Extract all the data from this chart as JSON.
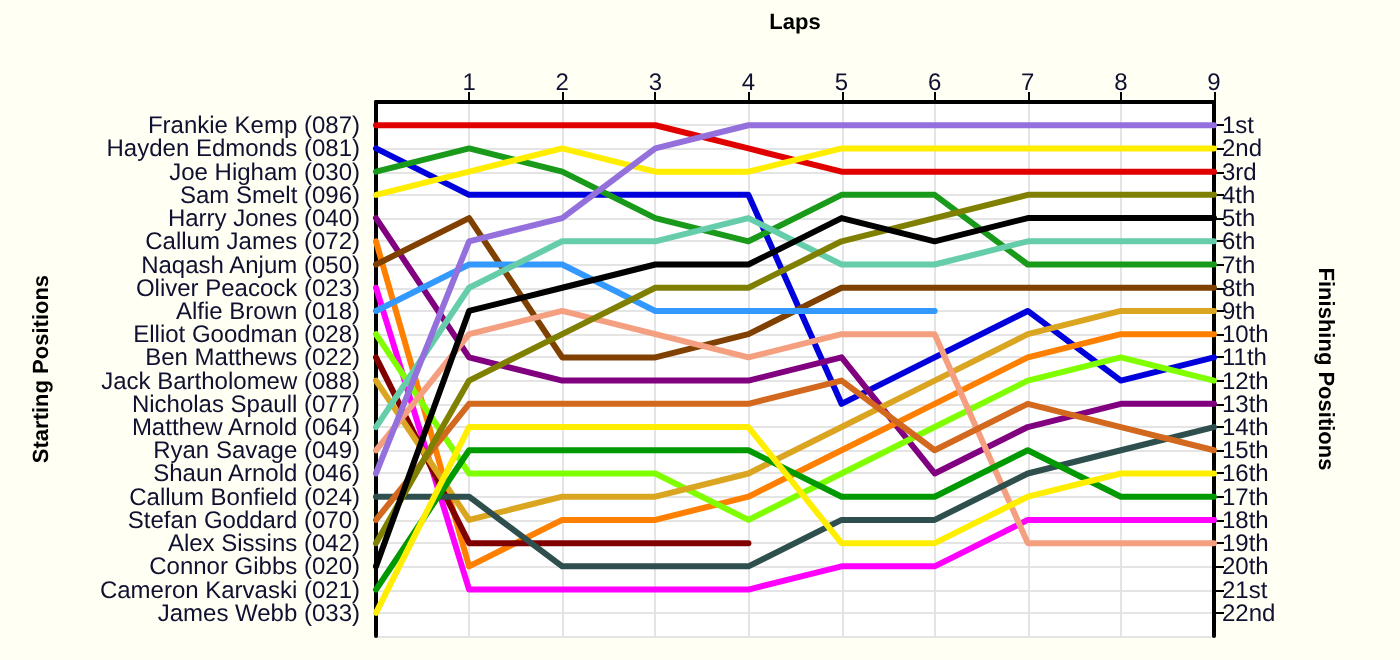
{
  "chart_data": {
    "type": "line",
    "xlabel": "Laps",
    "y2label": "Finishing Positions",
    "x": [
      0,
      1,
      2,
      3,
      4,
      5,
      6,
      7,
      8,
      9
    ],
    "xlim": [
      0,
      9
    ],
    "xticks": [
      1,
      2,
      3,
      4,
      5,
      6,
      7,
      8,
      9
    ],
    "ylim": [
      23,
      0
    ],
    "yticks": [
      {
        "value": 1,
        "label": "1st"
      },
      {
        "value": 2,
        "label": "2nd"
      },
      {
        "value": 3,
        "label": "3rd"
      },
      {
        "value": 4,
        "label": "4th"
      },
      {
        "value": 5,
        "label": "5th"
      },
      {
        "value": 6,
        "label": "6th"
      },
      {
        "value": 7,
        "label": "7th"
      },
      {
        "value": 8,
        "label": "8th"
      },
      {
        "value": 9,
        "label": "9th"
      },
      {
        "value": 10,
        "label": "10th"
      },
      {
        "value": 11,
        "label": "11th"
      },
      {
        "value": 12,
        "label": "12th"
      },
      {
        "value": 13,
        "label": "13th"
      },
      {
        "value": 14,
        "label": "14th"
      },
      {
        "value": 15,
        "label": "15th"
      },
      {
        "value": 16,
        "label": "16th"
      },
      {
        "value": 17,
        "label": "17th"
      },
      {
        "value": 18,
        "label": "18th"
      },
      {
        "value": 19,
        "label": "19th"
      },
      {
        "value": 20,
        "label": "20th"
      },
      {
        "value": 21,
        "label": "21st"
      },
      {
        "value": 22,
        "label": "22nd"
      }
    ],
    "grid": true,
    "legend": "left",
    "marker": "none",
    "line_style": "solid",
    "annotations": [
      "Starting Positions",
      {
        "text": "Nicholas Spaull (077)",
        "x": 0,
        "y": 13
      }
    ],
    "series": [
      {
        "name": "Frankie Kemp (087)",
        "color": "#e00000",
        "values": [
          1,
          1,
          1,
          1,
          2,
          3,
          3,
          3,
          3,
          3
        ]
      },
      {
        "name": "Hayden Edmonds (081)",
        "color": "#0000dd",
        "values": [
          2,
          4,
          4,
          4,
          4,
          13,
          11,
          9,
          12,
          11
        ]
      },
      {
        "name": "Joe Higham (030)",
        "color": "#1a9a1a",
        "values": [
          3,
          2,
          3,
          5,
          6,
          4,
          4,
          7,
          7,
          7
        ]
      },
      {
        "name": "Sam Smelt (096)",
        "color": "#ffee00",
        "values": [
          4,
          3,
          2,
          3,
          3,
          2,
          2,
          2,
          2,
          2
        ]
      },
      {
        "name": "Harry Jones (040)",
        "color": "#800080",
        "values": [
          5,
          11,
          12,
          12,
          12,
          11,
          16,
          14,
          13,
          13
        ]
      },
      {
        "name": "Callum James (072)",
        "color": "#ff8000",
        "values": [
          6,
          20,
          18,
          18,
          17,
          15,
          13,
          11,
          10,
          10
        ]
      },
      {
        "name": "Naqash Anjum (050)",
        "color": "#804000",
        "values": [
          7,
          5,
          11,
          11,
          10,
          8,
          8,
          8,
          8,
          8
        ]
      },
      {
        "name": "Oliver Peacock (023)",
        "color": "#ff00ff",
        "values": [
          8,
          21,
          21,
          21,
          21,
          20,
          20,
          18,
          18,
          18
        ]
      },
      {
        "name": "Alfie Brown (018)",
        "color": "#3399ff",
        "values": [
          9,
          7,
          7,
          9,
          9,
          9,
          9,
          null,
          null,
          null
        ]
      },
      {
        "name": "Elliot Goodman (028)",
        "color": "#80ff00",
        "values": [
          10,
          16,
          16,
          16,
          18,
          16,
          14,
          12,
          11,
          12
        ]
      },
      {
        "name": "Ben Matthews (022)",
        "color": "#800000",
        "values": [
          11,
          19,
          19,
          19,
          19,
          null,
          null,
          null,
          null,
          null
        ]
      },
      {
        "name": "Jack Bartholomew (088)",
        "color": "#daa520",
        "values": [
          12,
          18,
          17,
          17,
          16,
          14,
          12,
          10,
          9,
          9
        ]
      },
      {
        "name": "Matthew Arnold (064)",
        "color": "#66cdaa",
        "values": [
          14,
          8,
          6,
          6,
          5,
          7,
          7,
          6,
          6,
          6
        ]
      },
      {
        "name": "Ryan Savage (049)",
        "color": "#f4a080",
        "values": [
          15,
          10,
          9,
          10,
          11,
          10,
          10,
          19,
          19,
          19
        ]
      },
      {
        "name": "Shaun Arnold (046)",
        "color": "#9370db",
        "values": [
          16,
          6,
          5,
          2,
          1,
          1,
          1,
          1,
          1,
          1
        ]
      },
      {
        "name": "Callum Bonfield (024)",
        "color": "#2f4f4f",
        "values": [
          17,
          17,
          20,
          20,
          20,
          18,
          18,
          16,
          15,
          14
        ]
      },
      {
        "name": "Stefan Goddard (070)",
        "color": "#d2691e",
        "values": [
          18,
          13,
          13,
          13,
          13,
          12,
          15,
          13,
          14,
          15
        ]
      },
      {
        "name": "Alex Sissins (042)",
        "color": "#808000",
        "values": [
          19,
          12,
          10,
          8,
          8,
          6,
          5,
          4,
          4,
          4
        ]
      },
      {
        "name": "Connor Gibbs (020)",
        "color": "#000000",
        "values": [
          20,
          9,
          8,
          7,
          7,
          5,
          6,
          5,
          5,
          5
        ]
      },
      {
        "name": "Cameron Karvaski (021)",
        "color": "#009900",
        "values": [
          21,
          15,
          15,
          15,
          15,
          17,
          17,
          15,
          17,
          17
        ]
      },
      {
        "name": "James Webb (033)",
        "color": "#ffee00",
        "values": [
          22,
          14,
          14,
          14,
          14,
          19,
          19,
          17,
          16,
          16
        ]
      }
    ]
  }
}
